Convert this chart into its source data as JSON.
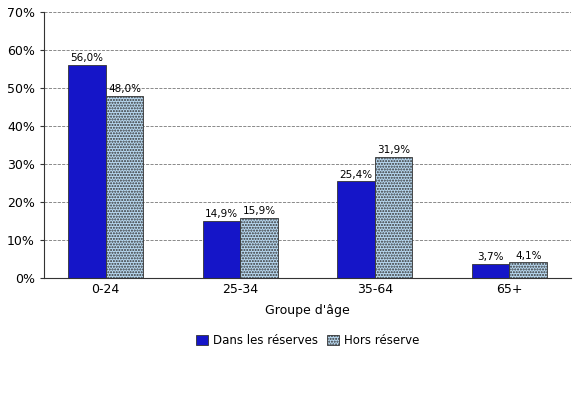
{
  "categories": [
    "0-24",
    "25-34",
    "35-64",
    "65+"
  ],
  "series": {
    "Dans les réserves": [
      56.0,
      14.9,
      25.4,
      3.7
    ],
    "Hors réserve": [
      48.0,
      15.9,
      31.9,
      4.1
    ]
  },
  "labels": {
    "Dans les réserves": [
      "56,0%",
      "14,9%",
      "25,4%",
      "3,7%"
    ],
    "Hors réserve": [
      "48,0%",
      "15,9%",
      "31,9%",
      "4,1%"
    ]
  },
  "colors": {
    "Dans les réserves": "#1515c8",
    "Hors réserve": "#b8d8f0"
  },
  "hatch": {
    "Dans les réserves": "",
    "Hors réserve": "......"
  },
  "xlabel": "Groupe d'âge",
  "ylim": [
    0,
    70
  ],
  "yticks": [
    0,
    10,
    20,
    30,
    40,
    50,
    60,
    70
  ],
  "ytick_labels": [
    "0%",
    "10%",
    "20%",
    "30%",
    "40%",
    "50%",
    "60%",
    "70%"
  ],
  "bar_width": 0.28,
  "legend_labels": [
    "Dans les réserves",
    "Hors réserve"
  ],
  "background_color": "#ffffff",
  "grid_color": "#555555",
  "label_fontsize": 7.5,
  "axis_fontsize": 9,
  "legend_fontsize": 8.5
}
